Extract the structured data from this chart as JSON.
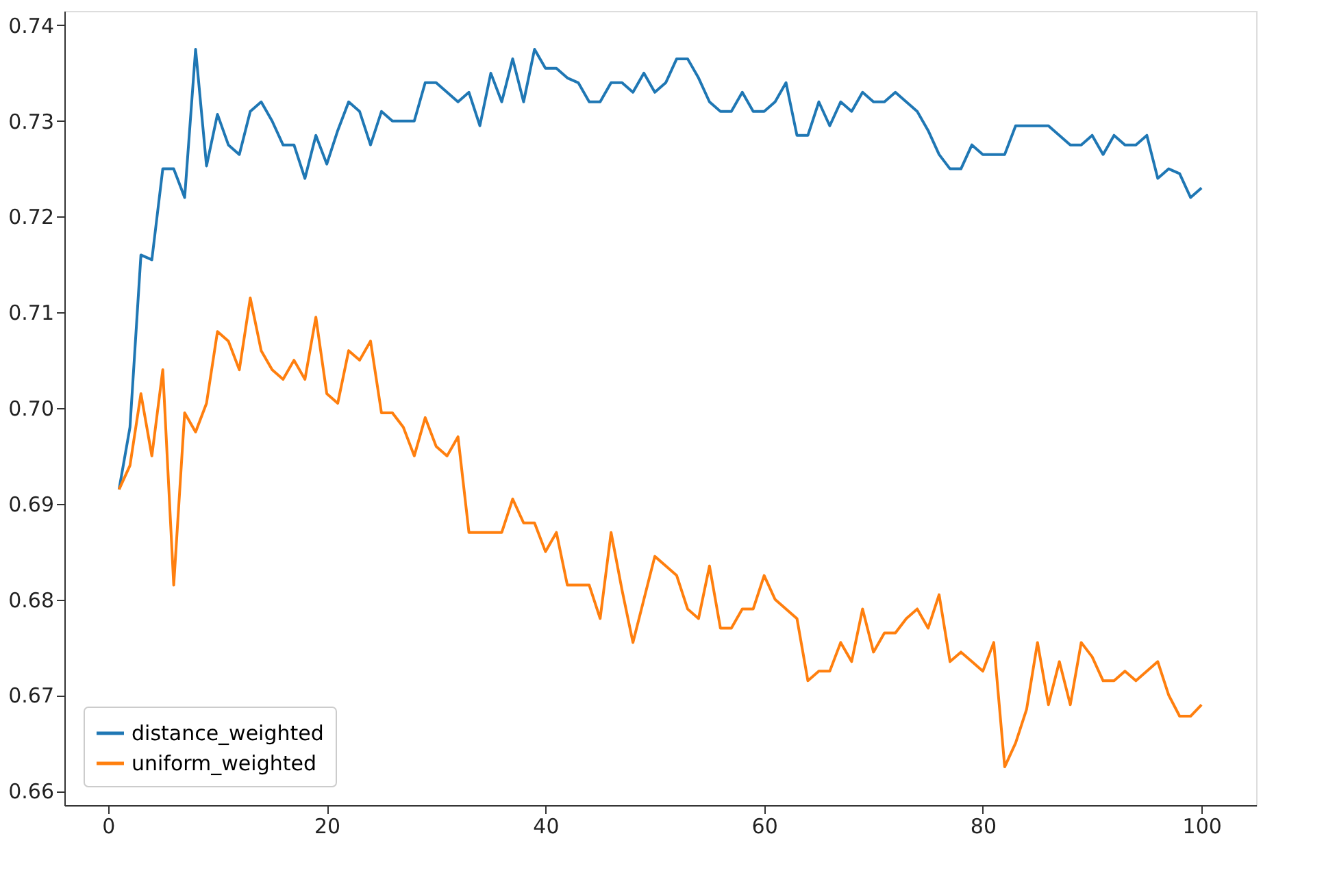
{
  "chart_data": {
    "type": "line",
    "x": [
      1,
      2,
      3,
      4,
      5,
      6,
      7,
      8,
      9,
      10,
      11,
      12,
      13,
      14,
      15,
      16,
      17,
      18,
      19,
      20,
      21,
      22,
      23,
      24,
      25,
      26,
      27,
      28,
      29,
      30,
      31,
      32,
      33,
      34,
      35,
      36,
      37,
      38,
      39,
      40,
      41,
      42,
      43,
      44,
      45,
      46,
      47,
      48,
      49,
      50,
      51,
      52,
      53,
      54,
      55,
      56,
      57,
      58,
      59,
      60,
      61,
      62,
      63,
      64,
      65,
      66,
      67,
      68,
      69,
      70,
      71,
      72,
      73,
      74,
      75,
      76,
      77,
      78,
      79,
      80,
      81,
      82,
      83,
      84,
      85,
      86,
      87,
      88,
      89,
      90,
      91,
      92,
      93,
      94,
      95,
      96,
      97,
      98,
      99,
      100
    ],
    "series": [
      {
        "name": "distance_weighted",
        "color": "#1f77b4",
        "values": [
          0.6915,
          0.698,
          0.716,
          0.7155,
          0.725,
          0.725,
          0.722,
          0.7375,
          0.7253,
          0.7307,
          0.7275,
          0.7265,
          0.731,
          0.732,
          0.73,
          0.7275,
          0.7275,
          0.724,
          0.7285,
          0.7255,
          0.729,
          0.732,
          0.731,
          0.7275,
          0.731,
          0.73,
          0.73,
          0.73,
          0.734,
          0.734,
          0.733,
          0.732,
          0.733,
          0.7295,
          0.735,
          0.732,
          0.7365,
          0.732,
          0.7375,
          0.7355,
          0.7355,
          0.7345,
          0.734,
          0.732,
          0.732,
          0.734,
          0.734,
          0.733,
          0.735,
          0.733,
          0.734,
          0.7365,
          0.7365,
          0.7345,
          0.732,
          0.731,
          0.731,
          0.733,
          0.731,
          0.731,
          0.732,
          0.734,
          0.7285,
          0.7285,
          0.732,
          0.7295,
          0.732,
          0.731,
          0.733,
          0.732,
          0.732,
          0.733,
          0.732,
          0.731,
          0.729,
          0.7265,
          0.725,
          0.725,
          0.7275,
          0.7265,
          0.7265,
          0.7265,
          0.7295,
          0.7295,
          0.7295,
          0.7295,
          0.7285,
          0.7275,
          0.7275,
          0.7285,
          0.7265,
          0.7285,
          0.7275,
          0.7275,
          0.7285,
          0.724,
          0.725,
          0.7245,
          0.722,
          0.723
        ]
      },
      {
        "name": "uniform_weighted",
        "color": "#ff7f0e",
        "values": [
          0.6915,
          0.694,
          0.7015,
          0.695,
          0.704,
          0.6815,
          0.6995,
          0.6975,
          0.7005,
          0.708,
          0.707,
          0.704,
          0.7115,
          0.706,
          0.704,
          0.703,
          0.705,
          0.703,
          0.7095,
          0.7015,
          0.7005,
          0.706,
          0.705,
          0.707,
          0.6995,
          0.6995,
          0.698,
          0.695,
          0.699,
          0.696,
          0.695,
          0.697,
          0.687,
          0.687,
          0.687,
          0.687,
          0.6905,
          0.688,
          0.688,
          0.685,
          0.687,
          0.6815,
          0.6815,
          0.6815,
          0.678,
          0.687,
          0.681,
          0.6755,
          0.68,
          0.6845,
          0.6835,
          0.6825,
          0.679,
          0.678,
          0.6835,
          0.677,
          0.677,
          0.679,
          0.679,
          0.6825,
          0.68,
          0.679,
          0.678,
          0.6715,
          0.6725,
          0.6725,
          0.6755,
          0.6735,
          0.679,
          0.6745,
          0.6765,
          0.6765,
          0.678,
          0.679,
          0.677,
          0.6805,
          0.6735,
          0.6745,
          0.6735,
          0.6725,
          0.6755,
          0.6625,
          0.665,
          0.6685,
          0.6755,
          0.669,
          0.6735,
          0.669,
          0.6755,
          0.674,
          0.6715,
          0.6715,
          0.6725,
          0.6715,
          0.6725,
          0.6735,
          0.67,
          0.6678,
          0.6678,
          0.669
        ]
      }
    ],
    "xlim": [
      -4,
      105
    ],
    "ylim": [
      0.6585,
      0.7415
    ],
    "xticks": [
      0,
      20,
      40,
      60,
      80,
      100
    ],
    "yticks": [
      {
        "value": 0.66,
        "label": "0.66"
      },
      {
        "value": 0.67,
        "label": "0.67"
      },
      {
        "value": 0.68,
        "label": "0.68"
      },
      {
        "value": 0.69,
        "label": "0.69"
      },
      {
        "value": 0.7,
        "label": "0.70"
      },
      {
        "value": 0.71,
        "label": "0.71"
      },
      {
        "value": 0.72,
        "label": "0.72"
      },
      {
        "value": 0.73,
        "label": "0.73"
      },
      {
        "value": 0.74,
        "label": "0.74"
      }
    ],
    "legend": "bottom left",
    "grid": false,
    "line_style": "solid",
    "marker": "none"
  }
}
